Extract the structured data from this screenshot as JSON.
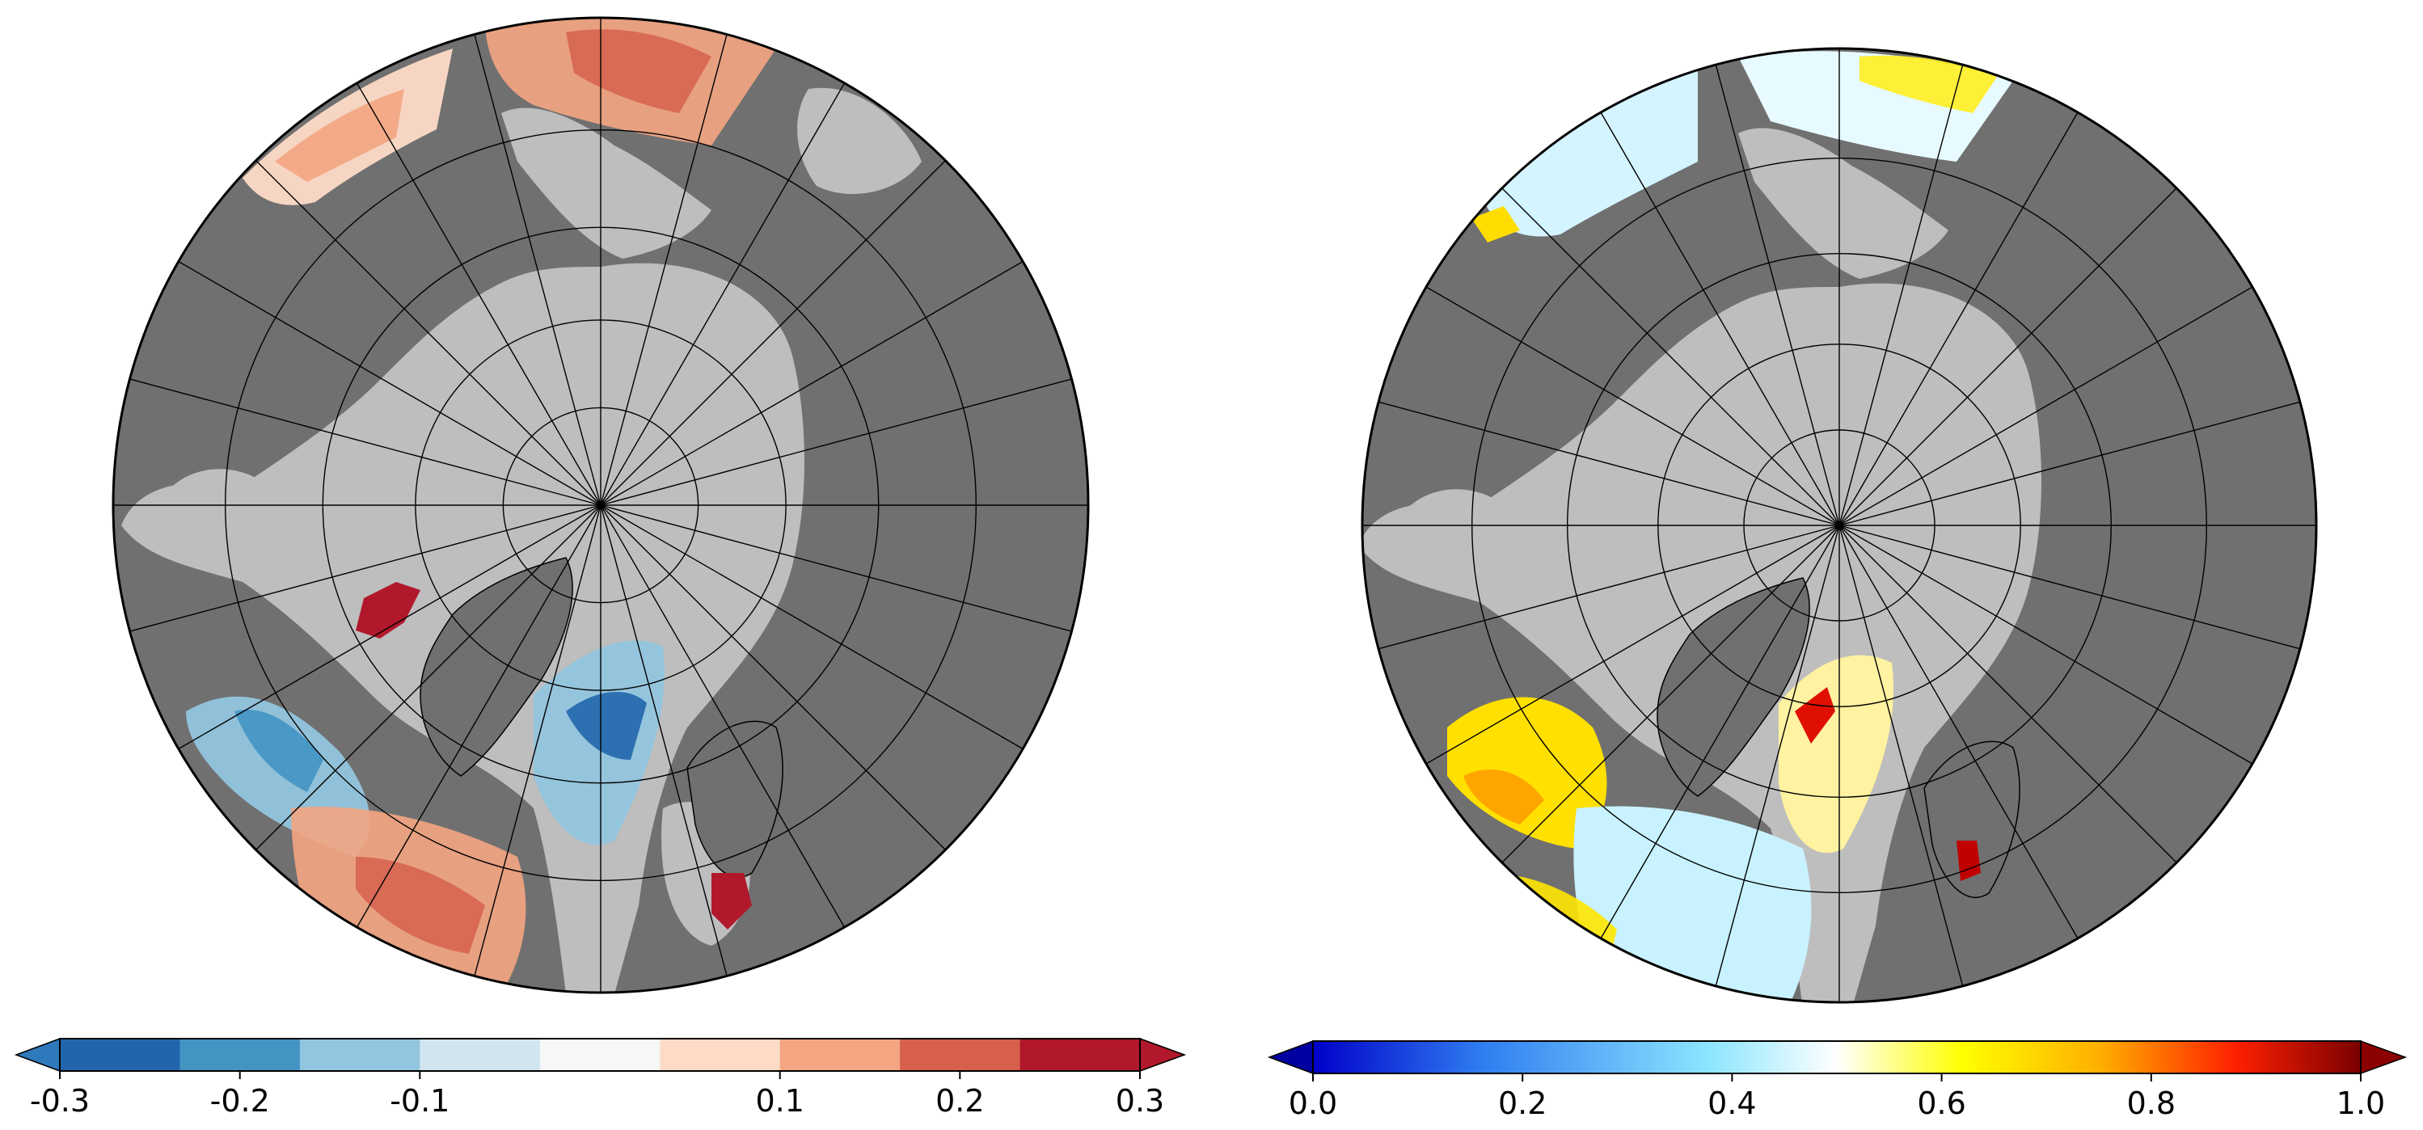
{
  "maps": [
    {
      "name": "left-map",
      "colorbar": {
        "type": "discrete",
        "ticks": [
          "-0.3",
          "-0.2",
          "-0.1",
          "0.1",
          "0.2",
          "0.3"
        ],
        "tick_values": [
          -0.3,
          -0.2,
          -0.1,
          0.1,
          0.2,
          0.3
        ],
        "range": [
          -0.3,
          0.3
        ],
        "colors": [
          "#2166ac",
          "#4393c3",
          "#92c5de",
          "#d1e5f0",
          "#f7f7f7",
          "#fddbc7",
          "#f4a582",
          "#d6604d",
          "#b2182b"
        ],
        "under_color": "#2f79bd",
        "over_color": "#b2182b"
      }
    },
    {
      "name": "right-map",
      "colorbar": {
        "type": "continuous",
        "ticks": [
          "0.0",
          "0.2",
          "0.4",
          "0.6",
          "0.8",
          "1.0"
        ],
        "tick_values": [
          0.0,
          0.2,
          0.4,
          0.6,
          0.8,
          1.0
        ],
        "range": [
          0.0,
          1.0
        ],
        "colors": [
          "#0000c8",
          "#2f7cf0",
          "#8ee6ff",
          "#ffffff",
          "#ffff00",
          "#ffb000",
          "#ff2000",
          "#7a0000"
        ],
        "under_color": "#0000a0",
        "over_color": "#8b0000"
      }
    }
  ],
  "colors": {
    "ocean_ice": "#bebebe",
    "land": "#707070",
    "grid": "#000000"
  }
}
